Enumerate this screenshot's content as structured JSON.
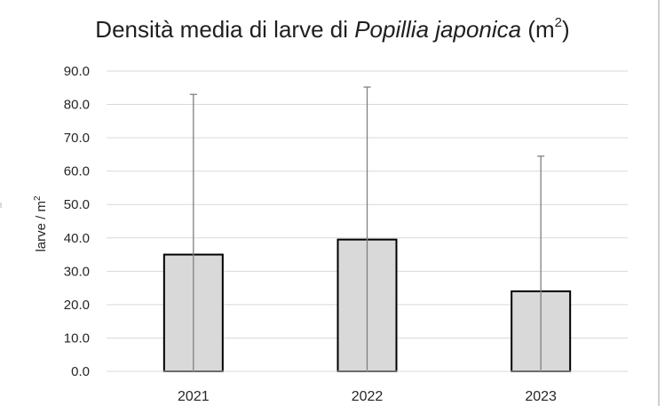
{
  "chart_data": {
    "type": "bar",
    "title_text": "Densità media di larve di ",
    "title_italic": "Popillia japonica",
    "title_unit_open": " (m",
    "title_unit_sup": "2",
    "title_unit_close": ")",
    "ylabel": "larve / m",
    "ylabel_sup": "2",
    "xlabel": "",
    "categories": [
      "2021",
      "2022",
      "2023"
    ],
    "values": [
      35.0,
      39.5,
      24.0
    ],
    "error_upper": [
      83.0,
      85.2,
      64.5
    ],
    "ylim": [
      0,
      90
    ],
    "yticks": [
      0,
      10,
      20,
      30,
      40,
      50,
      60,
      70,
      80,
      90
    ],
    "ytick_labels": [
      "0.0",
      "10.0",
      "20.0",
      "30.0",
      "40.0",
      "50.0",
      "60.0",
      "70.0",
      "80.0",
      "90.0"
    ],
    "grid": true,
    "legend": "none",
    "bar_fill": "#d9d9d9",
    "bar_stroke": "#000000",
    "error_color": "#808080",
    "grid_color": "#d9d9d9"
  }
}
